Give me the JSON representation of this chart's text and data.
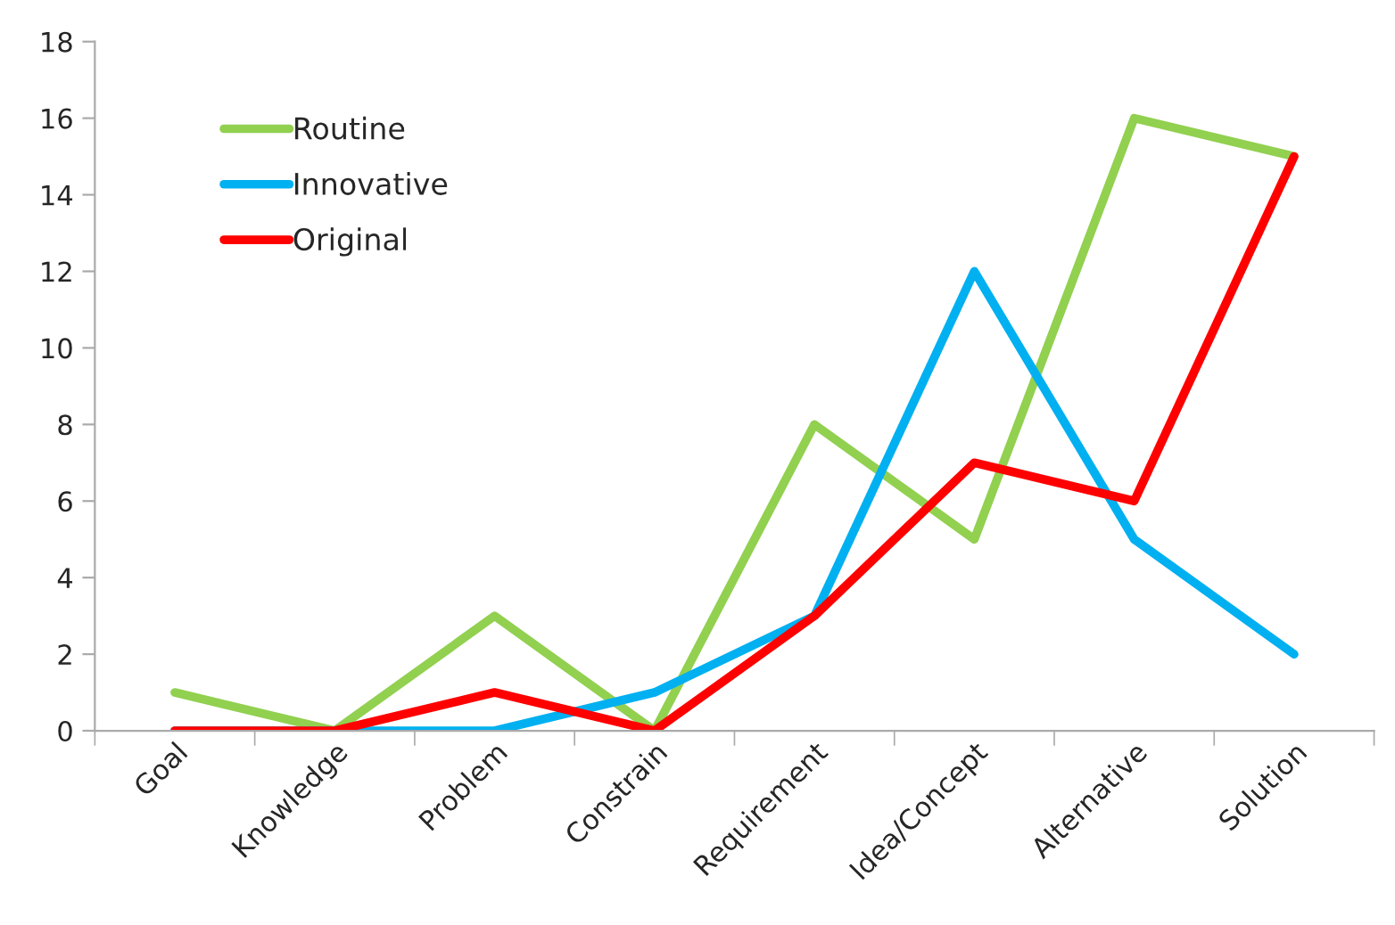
{
  "chart_data": {
    "type": "line",
    "categories": [
      "Goal",
      "Knowledge",
      "Problem",
      "Constrain",
      "Requirement",
      "Idea/Concept",
      "Alternative",
      "Solution"
    ],
    "series": [
      {
        "name": "Routine",
        "color": "#92d050",
        "values": [
          1,
          0,
          3,
          0,
          8,
          5,
          16,
          15
        ]
      },
      {
        "name": "Innovative",
        "color": "#00b0f0",
        "values": [
          0,
          0,
          0,
          1,
          3,
          12,
          5,
          2
        ]
      },
      {
        "name": "Original",
        "color": "#ff0000",
        "values": [
          0,
          0,
          1,
          0,
          3,
          7,
          6,
          15
        ]
      }
    ],
    "ylim": [
      0,
      18
    ],
    "yticks": [
      0,
      2,
      4,
      6,
      8,
      10,
      12,
      14,
      16,
      18
    ],
    "grid": false,
    "legend": "top left",
    "marker": "none",
    "line_style": "solid"
  }
}
